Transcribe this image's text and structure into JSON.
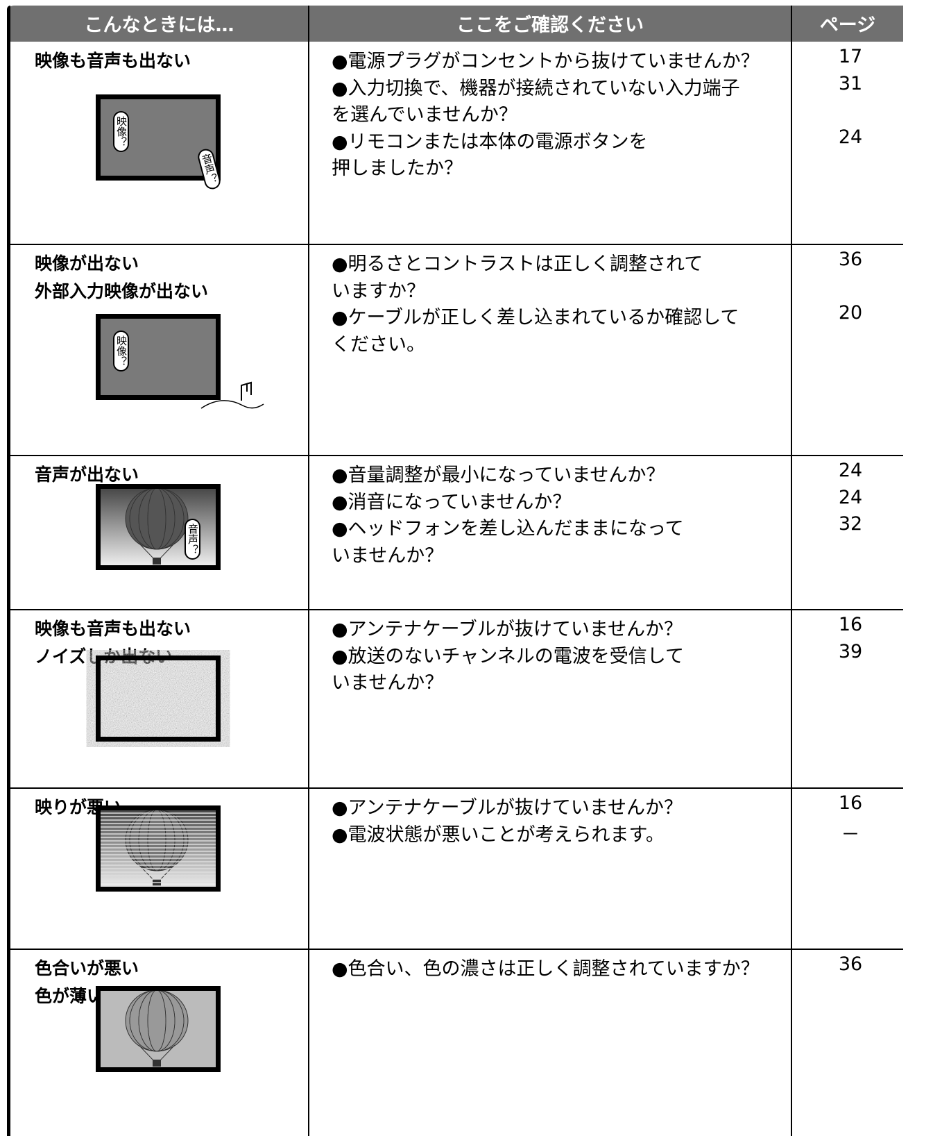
{
  "header": {
    "symptom": "こんなときには…",
    "check": "ここをご確認ください",
    "page": "ページ"
  },
  "rows": [
    {
      "symptom": [
        "映像も音声も出ない"
      ],
      "bubbles": [
        "映像？",
        "音声？"
      ],
      "checks": [
        {
          "lines": [
            "●電源プラグがコンセントから抜けていませんか？"
          ],
          "page": 17
        },
        {
          "lines": [
            "●入力切換で、機器が接続されていない入力端子",
            "を選んでいませんか？"
          ],
          "page": 31
        },
        {
          "lines": [
            "●リモコンまたは本体の電源ボタンを",
            "押しましたか？"
          ],
          "page": 24
        }
      ]
    },
    {
      "symptom": [
        "映像が出ない",
        "外部入力映像が出ない"
      ],
      "bubbles": [
        "映像？"
      ],
      "checks": [
        {
          "lines": [
            "●明るさとコントラストは正しく調整されて",
            "いますか？"
          ],
          "page": 36
        },
        {
          "lines": [
            "●ケーブルが正しく差し込まれているか確認して",
            "ください。"
          ],
          "page": 20
        }
      ]
    },
    {
      "symptom": [
        "音声が出ない"
      ],
      "bubbles": [
        "音声？"
      ],
      "checks": [
        {
          "lines": [
            "●音量調整が最小になっていませんか？"
          ],
          "page": 24
        },
        {
          "lines": [
            "●消音になっていませんか？"
          ],
          "page": 24
        },
        {
          "lines": [
            "●ヘッドフォンを差し込んだままになって",
            "いませんか？"
          ],
          "page": 32
        }
      ]
    },
    {
      "symptom": [
        "映像も音声も出ない",
        "ノイズしか出ない"
      ],
      "bubbles": [],
      "checks": [
        {
          "lines": [
            "●アンテナケーブルが抜けていませんか？"
          ],
          "page": 16
        },
        {
          "lines": [
            "●放送のないチャンネルの電波を受信して",
            "いませんか？"
          ],
          "page": 39
        }
      ]
    },
    {
      "symptom": [
        "映りが悪い"
      ],
      "bubbles": [],
      "checks": [
        {
          "lines": [
            "●アンテナケーブルが抜けていませんか？"
          ],
          "page": 16
        },
        {
          "lines": [
            "●電波状態が悪いことが考えられます。"
          ],
          "page": "－"
        }
      ]
    },
    {
      "symptom": [
        "色合いが悪い",
        "色が薄い"
      ],
      "bubbles": [],
      "checks": [
        {
          "lines": [
            "●色合い、色の濃さは正しく調整されていますか？"
          ],
          "page": 36
        }
      ]
    }
  ]
}
